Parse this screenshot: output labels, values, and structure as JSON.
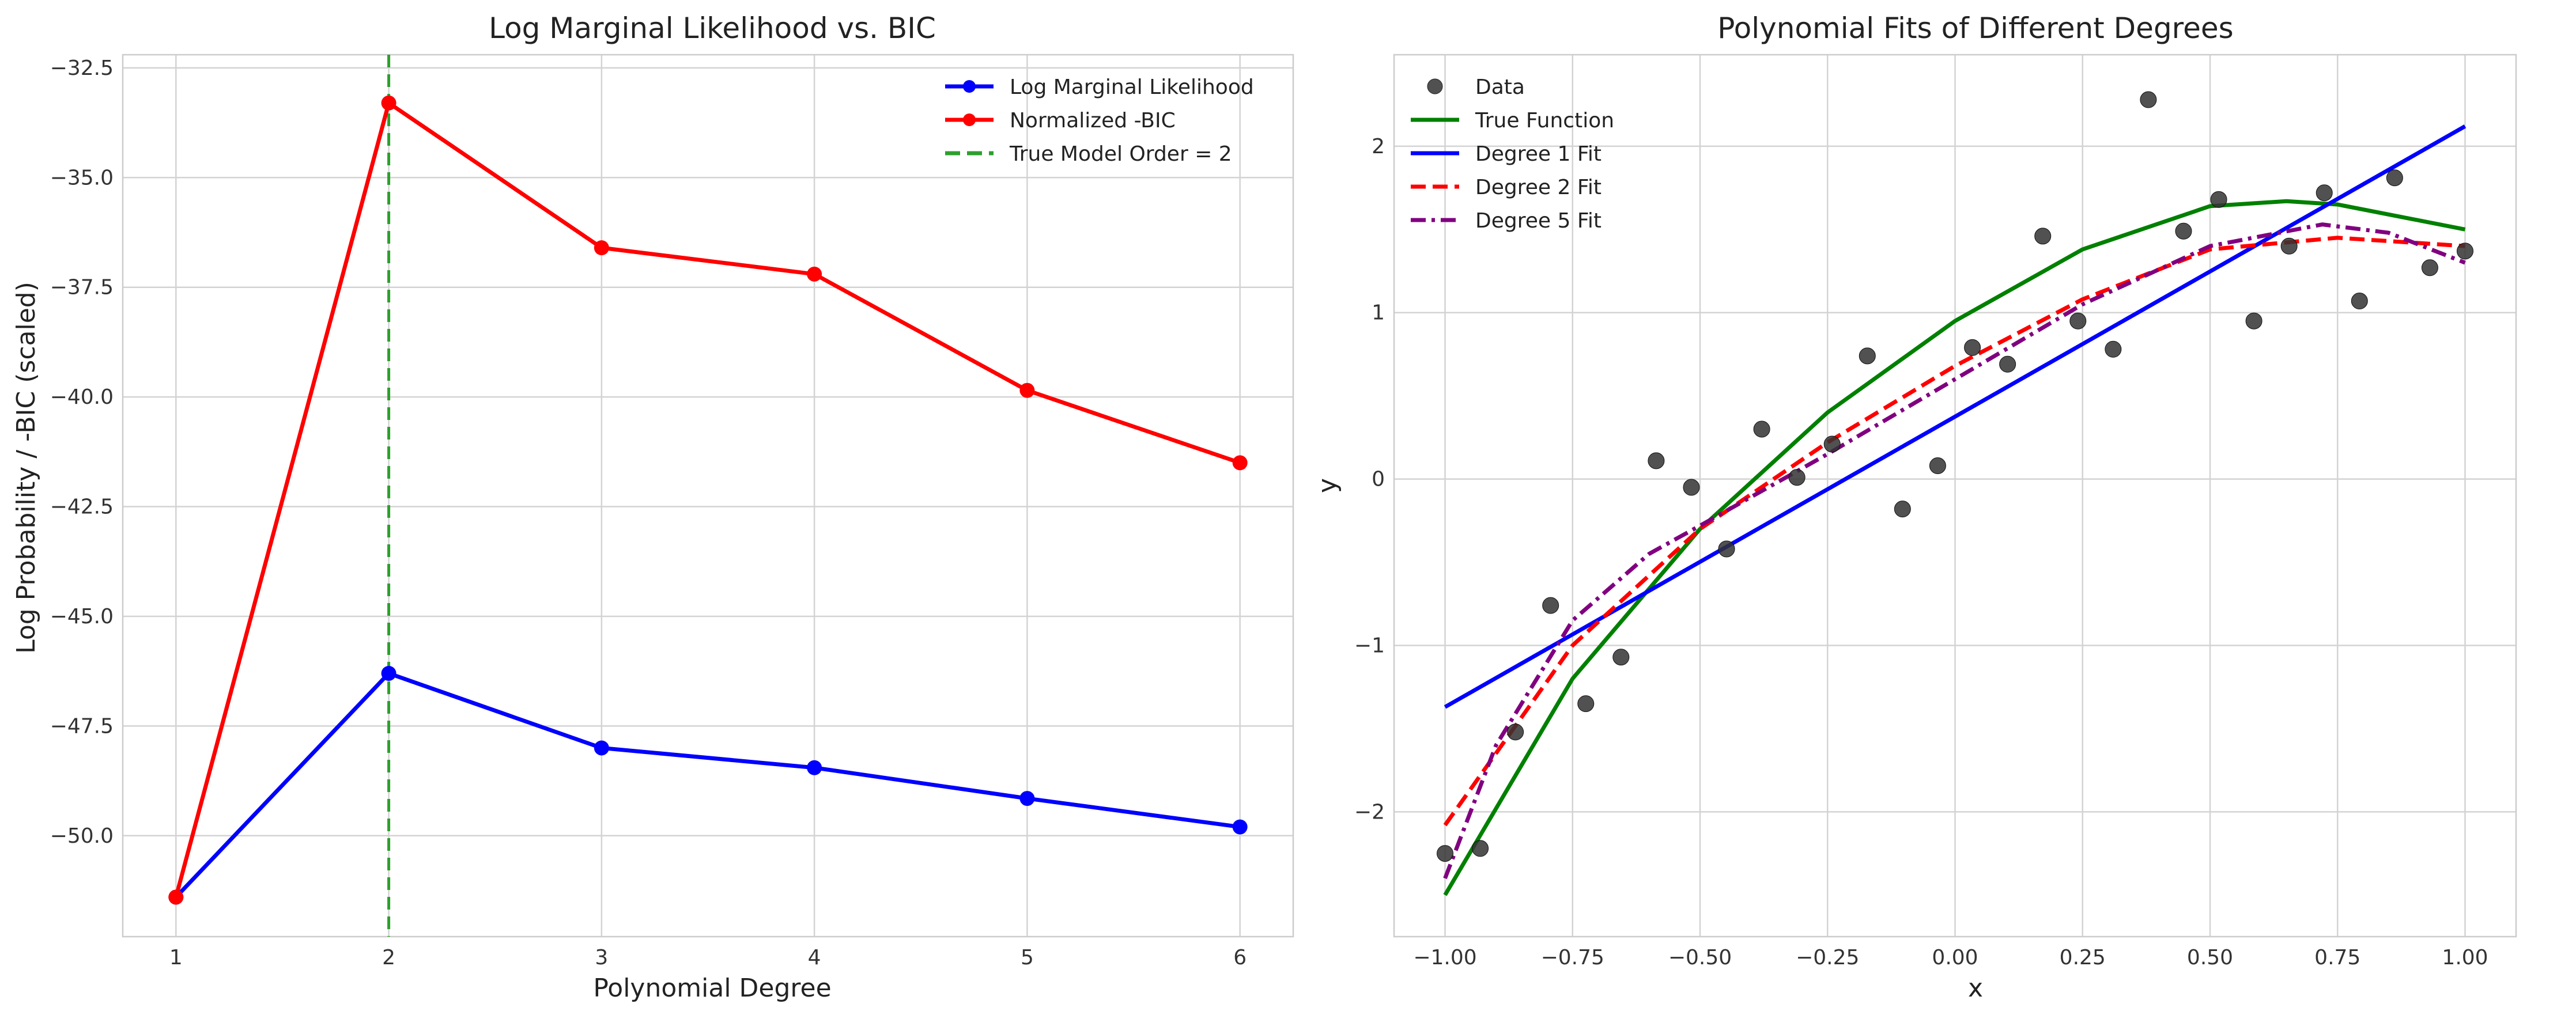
{
  "chart_data": [
    {
      "type": "line",
      "title": "Log Marginal Likelihood vs. BIC",
      "xlabel": "Polynomial Degree",
      "ylabel": "Log Probability / -BIC (scaled)",
      "xlim": [
        0.75,
        6.25
      ],
      "ylim": [
        -52.3,
        -32.2
      ],
      "xticks": [
        1,
        2,
        3,
        4,
        5,
        6
      ],
      "xtick_labels": [
        "1",
        "2",
        "3",
        "4",
        "5",
        "6"
      ],
      "yticks": [
        -50.0,
        -47.5,
        -45.0,
        -42.5,
        -40.0,
        -37.5,
        -35.0,
        -32.5
      ],
      "ytick_labels": [
        "−50.0",
        "−47.5",
        "−45.0",
        "−42.5",
        "−40.0",
        "−37.5",
        "−35.0",
        "−32.5"
      ],
      "grid": true,
      "legend_position": "top-right",
      "x": [
        1,
        2,
        3,
        4,
        5,
        6
      ],
      "series": [
        {
          "name": "Log Marginal Likelihood",
          "color": "#0000ff",
          "marker": "circle",
          "values": [
            -51.4,
            -46.3,
            -48.0,
            -48.45,
            -49.15,
            -49.8
          ]
        },
        {
          "name": "Normalized -BIC",
          "color": "#ff0000",
          "marker": "circle",
          "values": [
            -51.4,
            -33.3,
            -36.6,
            -37.2,
            -39.85,
            -41.5
          ]
        }
      ],
      "annotations": [
        {
          "type": "vline",
          "x": 2,
          "name": "True Model Order = 2",
          "color": "#2ca02c",
          "style": "dashed"
        }
      ]
    },
    {
      "type": "scatter",
      "title": "Polynomial Fits of Different Degrees",
      "xlabel": "x",
      "ylabel": "y",
      "xlim": [
        -1.1,
        1.1
      ],
      "ylim": [
        -2.75,
        2.55
      ],
      "xticks": [
        -1.0,
        -0.75,
        -0.5,
        -0.25,
        0.0,
        0.25,
        0.5,
        0.75,
        1.0
      ],
      "xtick_labels": [
        "−1.00",
        "−0.75",
        "−0.50",
        "−0.25",
        "0.00",
        "0.25",
        "0.50",
        "0.75",
        "1.00"
      ],
      "yticks": [
        -2,
        -1,
        0,
        1,
        2
      ],
      "ytick_labels": [
        "−2",
        "−1",
        "0",
        "1",
        "2"
      ],
      "grid": true,
      "legend_position": "top-left",
      "scatter": {
        "name": "Data",
        "color": "#333333",
        "x": [
          -1.0,
          -0.931,
          -0.862,
          -0.793,
          -0.724,
          -0.655,
          -0.586,
          -0.517,
          -0.448,
          -0.379,
          -0.31,
          -0.241,
          -0.172,
          -0.103,
          -0.034,
          0.034,
          0.103,
          0.172,
          0.241,
          0.31,
          0.379,
          0.448,
          0.517,
          0.586,
          0.655,
          0.724,
          0.793,
          0.862,
          0.931,
          1.0
        ],
        "y": [
          -2.25,
          -2.22,
          -1.52,
          -0.76,
          -1.35,
          -1.07,
          0.11,
          -0.05,
          -0.42,
          0.3,
          0.01,
          0.21,
          0.74,
          -0.18,
          0.08,
          0.79,
          0.69,
          1.46,
          0.95,
          0.78,
          2.28,
          1.49,
          1.68,
          0.95,
          1.4,
          1.72,
          1.07,
          1.81,
          1.27,
          1.37
        ]
      },
      "series": [
        {
          "name": "True Function",
          "color": "#008000",
          "style": "solid",
          "x": [
            -1.0,
            -0.75,
            -0.5,
            -0.25,
            0.0,
            0.25,
            0.5,
            0.65,
            0.75,
            1.0
          ],
          "values": [
            -2.5,
            -1.2,
            -0.3,
            0.4,
            0.95,
            1.38,
            1.64,
            1.67,
            1.65,
            1.5
          ]
        },
        {
          "name": "Degree 1 Fit",
          "color": "#0000ff",
          "style": "solid",
          "x": [
            -1.0,
            1.0
          ],
          "values": [
            -1.37,
            2.12
          ]
        },
        {
          "name": "Degree 2 Fit",
          "color": "#ff0000",
          "style": "dashed",
          "x": [
            -1.0,
            -0.75,
            -0.5,
            -0.25,
            0.0,
            0.25,
            0.5,
            0.75,
            1.0
          ],
          "values": [
            -2.08,
            -1.0,
            -0.3,
            0.22,
            0.68,
            1.08,
            1.38,
            1.45,
            1.4
          ]
        },
        {
          "name": "Degree 5 Fit",
          "color": "#800080",
          "style": "dashdot",
          "x": [
            -1.0,
            -0.9,
            -0.75,
            -0.6,
            -0.5,
            -0.25,
            0.0,
            0.25,
            0.5,
            0.72,
            0.85,
            1.0
          ],
          "values": [
            -2.4,
            -1.6,
            -0.85,
            -0.45,
            -0.28,
            0.15,
            0.6,
            1.05,
            1.4,
            1.53,
            1.48,
            1.3
          ]
        }
      ]
    }
  ]
}
